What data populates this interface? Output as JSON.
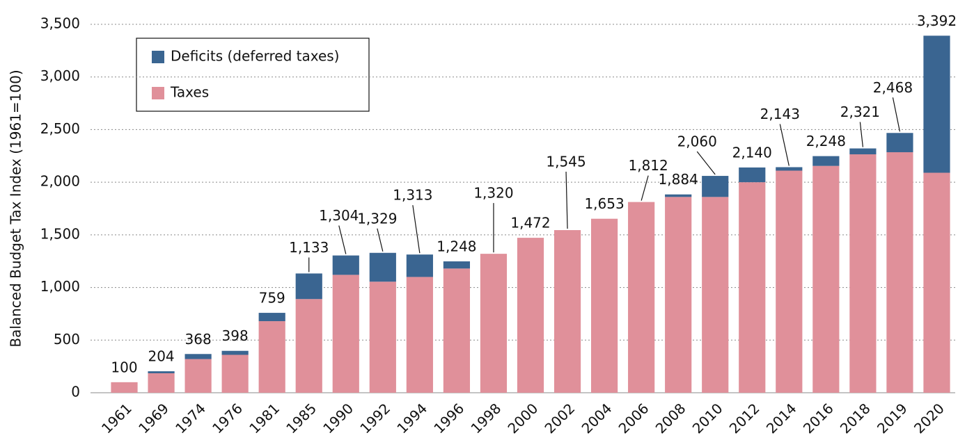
{
  "chart_data": {
    "type": "stacked_bar",
    "y_label": "Balanced Budget Tax Index (1961=100)",
    "categories": [
      "1961",
      "1969",
      "1974",
      "1976",
      "1981",
      "1985",
      "1990",
      "1992",
      "1994",
      "1996",
      "1998",
      "2000",
      "2002",
      "2004",
      "2006",
      "2008",
      "2010",
      "2012",
      "2014",
      "2016",
      "2018",
      "2019",
      "2020"
    ],
    "series": [
      {
        "name": "Taxes",
        "color": "#e0909a",
        "values": [
          100,
          185,
          320,
          360,
          680,
          890,
          1120,
          1055,
          1100,
          1180,
          1320,
          1472,
          1545,
          1653,
          1812,
          1860,
          1860,
          2000,
          2110,
          2155,
          2265,
          2285,
          2090
        ]
      },
      {
        "name": "Deficits (deferred taxes)",
        "color": "#3a6591",
        "values": [
          0,
          19,
          48,
          38,
          79,
          243,
          184,
          274,
          213,
          68,
          0,
          0,
          0,
          0,
          0,
          24,
          200,
          140,
          33,
          93,
          56,
          183,
          1302
        ]
      }
    ],
    "totals": [
      100,
      204,
      368,
      398,
      759,
      1133,
      1304,
      1329,
      1313,
      1248,
      1320,
      1472,
      1545,
      1653,
      1812,
      1884,
      2060,
      2140,
      2143,
      2248,
      2321,
      2468,
      3392
    ],
    "total_labels": [
      "100",
      "204",
      "368",
      "398",
      "759",
      "1,133",
      "1,304",
      "1,329",
      "1,313",
      "1,248",
      "1,320",
      "1,472",
      "1,545",
      "1,653",
      "1,812",
      "1,884",
      "2,060",
      "2,140",
      "2,143",
      "2,248",
      "2,321",
      "2,468",
      "3,392"
    ],
    "ylim": [
      0,
      3500
    ],
    "yticks": [
      0,
      500,
      {
        "value": 1000,
        "label": "1,000"
      },
      {
        "value": 1500,
        "label": "1,500"
      },
      {
        "value": 2000,
        "label": "2,000"
      },
      {
        "value": 2500,
        "label": "2,500"
      },
      {
        "value": 3000,
        "label": "3,000"
      },
      {
        "value": 3500,
        "label": "3,500"
      }
    ],
    "grid": true,
    "legend": "upper left"
  }
}
